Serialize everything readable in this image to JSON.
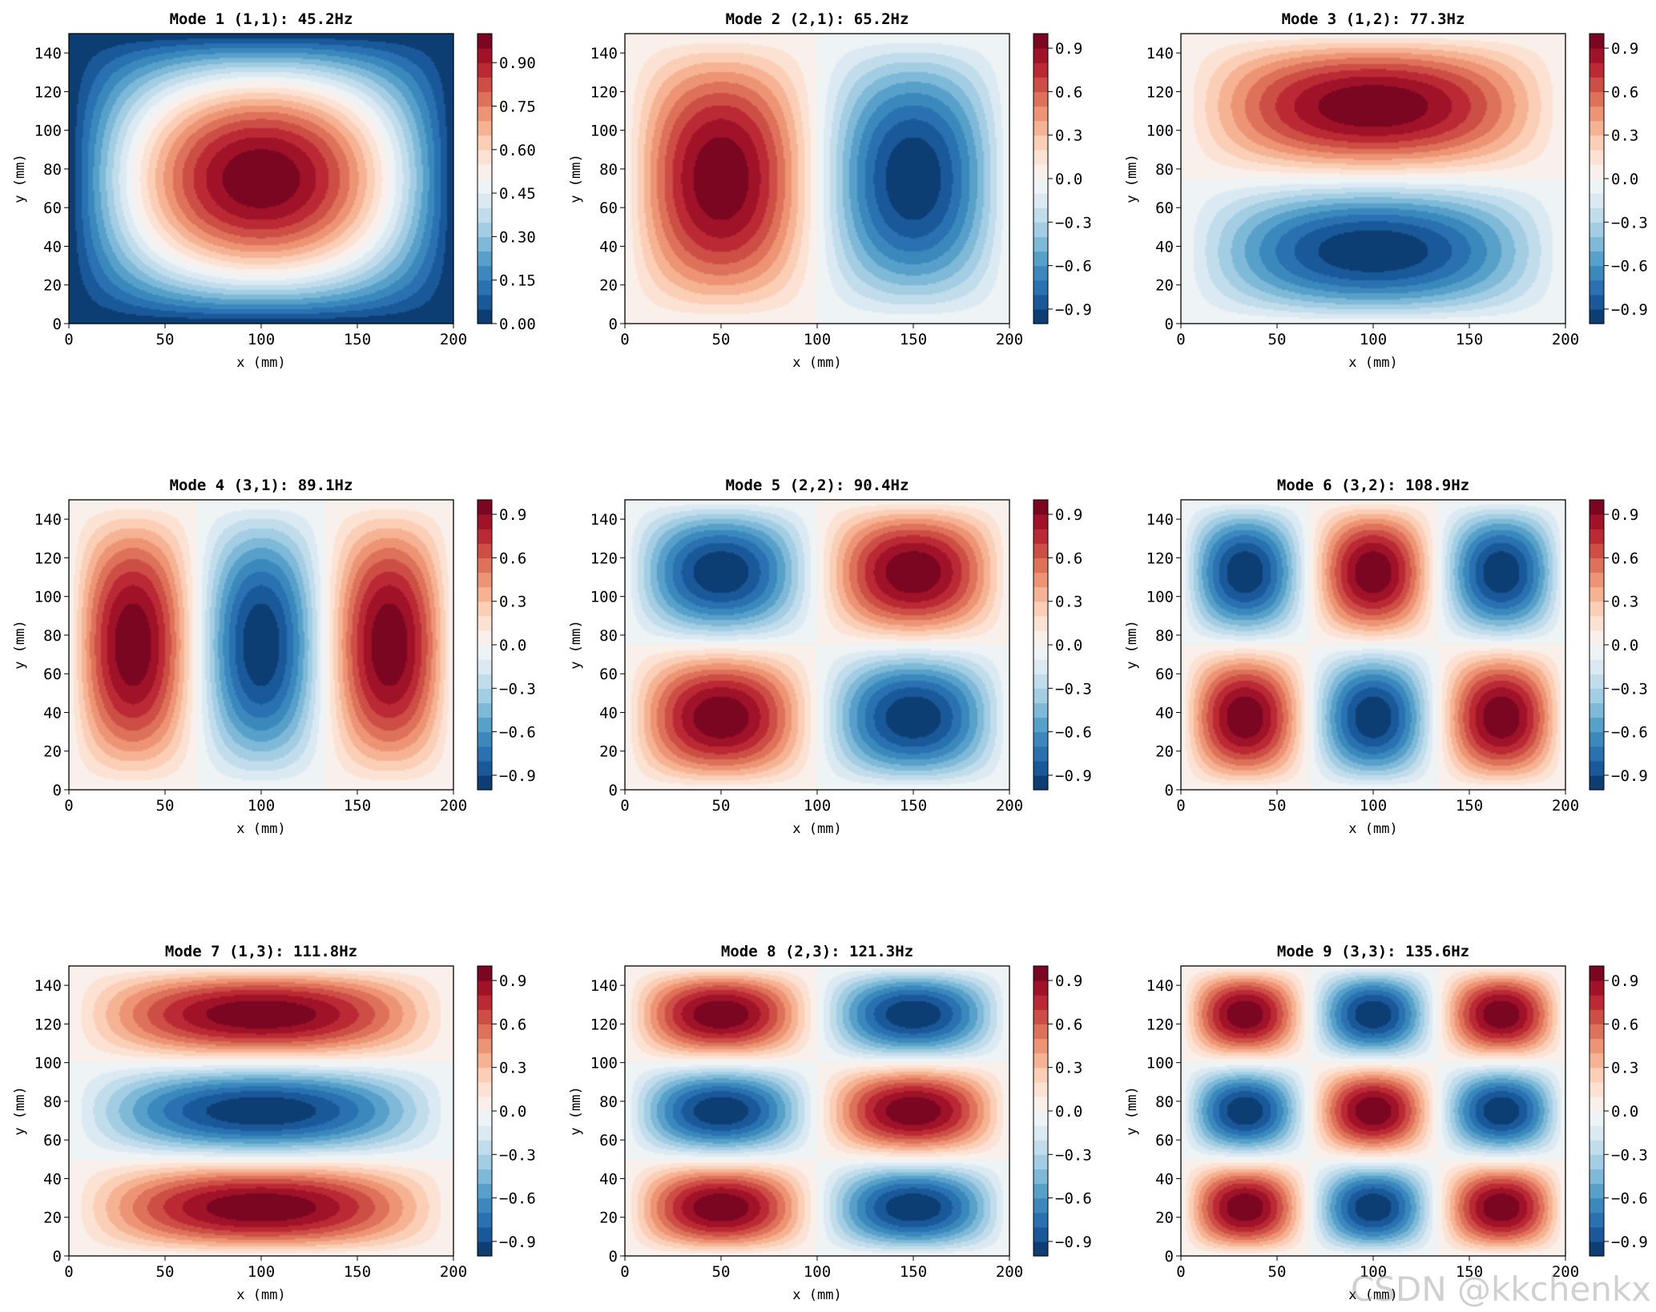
{
  "watermark": "CSDN @kkchenkx",
  "chart_data": [
    {
      "type": "heatmap",
      "title": "Mode 1 (1,1): 45.2Hz",
      "xlabel": "x (mm)",
      "ylabel": "y (mm)",
      "xlim": [
        0,
        200
      ],
      "ylim": [
        0,
        150
      ],
      "x_ticks": [
        0,
        50,
        100,
        150,
        200
      ],
      "y_ticks": [
        0,
        20,
        40,
        60,
        80,
        100,
        120,
        140
      ],
      "mode_m": 1,
      "mode_n": 1,
      "frequency_hz": 45.2,
      "field": "sin(m·π·x/200)·sin(n·π·y/150)",
      "colormap": "RdBu_r",
      "levels": 20,
      "colorbar_range": [
        0,
        1
      ],
      "colorbar_ticks": [
        "0.00",
        "0.15",
        "0.30",
        "0.45",
        "0.60",
        "0.75",
        "0.90"
      ]
    },
    {
      "type": "heatmap",
      "title": "Mode 2 (2,1): 65.2Hz",
      "xlabel": "x (mm)",
      "ylabel": "y (mm)",
      "xlim": [
        0,
        200
      ],
      "ylim": [
        0,
        150
      ],
      "x_ticks": [
        0,
        50,
        100,
        150,
        200
      ],
      "y_ticks": [
        0,
        20,
        40,
        60,
        80,
        100,
        120,
        140
      ],
      "mode_m": 2,
      "mode_n": 1,
      "frequency_hz": 65.2,
      "field": "sin(m·π·x/200)·sin(n·π·y/150)",
      "colormap": "RdBu_r",
      "levels": 20,
      "colorbar_range": [
        -1,
        1
      ],
      "colorbar_ticks": [
        "−0.9",
        "−0.6",
        "−0.3",
        "0.0",
        "0.3",
        "0.6",
        "0.9"
      ]
    },
    {
      "type": "heatmap",
      "title": "Mode 3 (1,2): 77.3Hz",
      "xlabel": "x (mm)",
      "ylabel": "y (mm)",
      "xlim": [
        0,
        200
      ],
      "ylim": [
        0,
        150
      ],
      "x_ticks": [
        0,
        50,
        100,
        150,
        200
      ],
      "y_ticks": [
        0,
        20,
        40,
        60,
        80,
        100,
        120,
        140
      ],
      "mode_m": 1,
      "mode_n": 2,
      "frequency_hz": 77.3,
      "field": "−sin(m·π·x/200)·sin(n·π·y/150)",
      "sign": -1,
      "colormap": "RdBu_r",
      "levels": 20,
      "colorbar_range": [
        -1,
        1
      ],
      "colorbar_ticks": [
        "−0.9",
        "−0.6",
        "−0.3",
        "0.0",
        "0.3",
        "0.6",
        "0.9"
      ]
    },
    {
      "type": "heatmap",
      "title": "Mode 4 (3,1): 89.1Hz",
      "xlabel": "x (mm)",
      "ylabel": "y (mm)",
      "xlim": [
        0,
        200
      ],
      "ylim": [
        0,
        150
      ],
      "x_ticks": [
        0,
        50,
        100,
        150,
        200
      ],
      "y_ticks": [
        0,
        20,
        40,
        60,
        80,
        100,
        120,
        140
      ],
      "mode_m": 3,
      "mode_n": 1,
      "frequency_hz": 89.1,
      "field": "sin(m·π·x/200)·sin(n·π·y/150)",
      "colormap": "RdBu_r",
      "levels": 20,
      "colorbar_range": [
        -1,
        1
      ],
      "colorbar_ticks": [
        "−0.9",
        "−0.6",
        "−0.3",
        "0.0",
        "0.3",
        "0.6",
        "0.9"
      ]
    },
    {
      "type": "heatmap",
      "title": "Mode 5 (2,2): 90.4Hz",
      "xlabel": "x (mm)",
      "ylabel": "y (mm)",
      "xlim": [
        0,
        200
      ],
      "ylim": [
        0,
        150
      ],
      "x_ticks": [
        0,
        50,
        100,
        150,
        200
      ],
      "y_ticks": [
        0,
        20,
        40,
        60,
        80,
        100,
        120,
        140
      ],
      "mode_m": 2,
      "mode_n": 2,
      "frequency_hz": 90.4,
      "field": "sin(m·π·x/200)·sin(n·π·y/150)",
      "colormap": "RdBu_r",
      "levels": 20,
      "colorbar_range": [
        -1,
        1
      ],
      "colorbar_ticks": [
        "−0.9",
        "−0.6",
        "−0.3",
        "0.0",
        "0.3",
        "0.6",
        "0.9"
      ]
    },
    {
      "type": "heatmap",
      "title": "Mode 6 (3,2): 108.9Hz",
      "xlabel": "x (mm)",
      "ylabel": "y (mm)",
      "xlim": [
        0,
        200
      ],
      "ylim": [
        0,
        150
      ],
      "x_ticks": [
        0,
        50,
        100,
        150,
        200
      ],
      "y_ticks": [
        0,
        20,
        40,
        60,
        80,
        100,
        120,
        140
      ],
      "mode_m": 3,
      "mode_n": 2,
      "frequency_hz": 108.9,
      "field": "sin(m·π·x/200)·sin(n·π·y/150)",
      "colormap": "RdBu_r",
      "levels": 20,
      "colorbar_range": [
        -1,
        1
      ],
      "colorbar_ticks": [
        "−0.9",
        "−0.6",
        "−0.3",
        "0.0",
        "0.3",
        "0.6",
        "0.9"
      ]
    },
    {
      "type": "heatmap",
      "title": "Mode 7 (1,3): 111.8Hz",
      "xlabel": "x (mm)",
      "ylabel": "y (mm)",
      "xlim": [
        0,
        200
      ],
      "ylim": [
        0,
        150
      ],
      "x_ticks": [
        0,
        50,
        100,
        150,
        200
      ],
      "y_ticks": [
        0,
        20,
        40,
        60,
        80,
        100,
        120,
        140
      ],
      "mode_m": 1,
      "mode_n": 3,
      "frequency_hz": 111.8,
      "field": "sin(m·π·x/200)·sin(n·π·y/150)",
      "colormap": "RdBu_r",
      "levels": 20,
      "colorbar_range": [
        -1,
        1
      ],
      "colorbar_ticks": [
        "−0.9",
        "−0.6",
        "−0.3",
        "0.0",
        "0.3",
        "0.6",
        "0.9"
      ]
    },
    {
      "type": "heatmap",
      "title": "Mode 8 (2,3): 121.3Hz",
      "xlabel": "x (mm)",
      "ylabel": "y (mm)",
      "xlim": [
        0,
        200
      ],
      "ylim": [
        0,
        150
      ],
      "x_ticks": [
        0,
        50,
        100,
        150,
        200
      ],
      "y_ticks": [
        0,
        20,
        40,
        60,
        80,
        100,
        120,
        140
      ],
      "mode_m": 2,
      "mode_n": 3,
      "frequency_hz": 121.3,
      "field": "sin(m·π·x/200)·sin(n·π·y/150)",
      "colormap": "RdBu_r",
      "levels": 20,
      "colorbar_range": [
        -1,
        1
      ],
      "colorbar_ticks": [
        "−0.9",
        "−0.6",
        "−0.3",
        "0.0",
        "0.3",
        "0.6",
        "0.9"
      ]
    },
    {
      "type": "heatmap",
      "title": "Mode 9 (3,3): 135.6Hz",
      "xlabel": "x (mm)",
      "ylabel": "y (mm)",
      "xlim": [
        0,
        200
      ],
      "ylim": [
        0,
        150
      ],
      "x_ticks": [
        0,
        50,
        100,
        150,
        200
      ],
      "y_ticks": [
        0,
        20,
        40,
        60,
        80,
        100,
        120,
        140
      ],
      "mode_m": 3,
      "mode_n": 3,
      "frequency_hz": 135.6,
      "field": "sin(m·π·x/200)·sin(n·π·y/150)",
      "colormap": "RdBu_r",
      "levels": 20,
      "colorbar_range": [
        -1,
        1
      ],
      "colorbar_ticks": [
        "−0.9",
        "−0.6",
        "−0.3",
        "0.0",
        "0.3",
        "0.6",
        "0.9"
      ]
    }
  ]
}
